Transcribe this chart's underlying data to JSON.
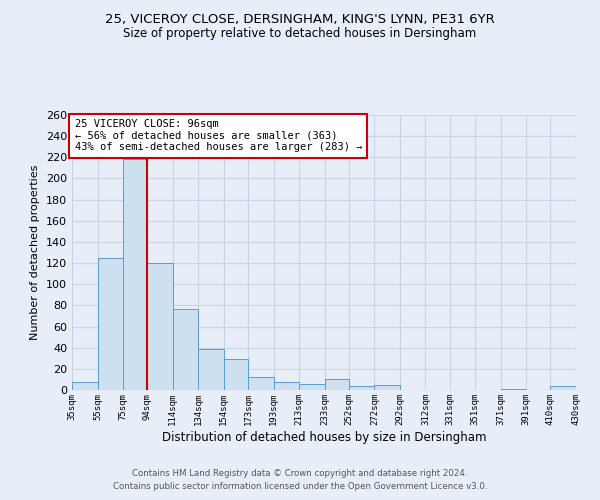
{
  "title1": "25, VICEROY CLOSE, DERSINGHAM, KING'S LYNN, PE31 6YR",
  "title2": "Size of property relative to detached houses in Dersingham",
  "xlabel": "Distribution of detached houses by size in Dersingham",
  "ylabel": "Number of detached properties",
  "property_label": "25 VICEROY CLOSE: 96sqm",
  "annotation_line1": "← 56% of detached houses are smaller (363)",
  "annotation_line2": "43% of semi-detached houses are larger (283) →",
  "bar_color": "#cce0f0",
  "bar_edge_color": "#5b9bd5",
  "vline_color": "#cc0000",
  "footer1": "Contains HM Land Registry data © Crown copyright and database right 2024.",
  "footer2": "Contains public sector information licensed under the Open Government Licence v3.0.",
  "bins": [
    35,
    55,
    75,
    94,
    114,
    134,
    154,
    173,
    193,
    213,
    233,
    252,
    272,
    292,
    312,
    331,
    351,
    371,
    391,
    410,
    430
  ],
  "bin_labels": [
    "35sqm",
    "55sqm",
    "75sqm",
    "94sqm",
    "114sqm",
    "134sqm",
    "154sqm",
    "173sqm",
    "193sqm",
    "213sqm",
    "233sqm",
    "252sqm",
    "272sqm",
    "292sqm",
    "312sqm",
    "331sqm",
    "351sqm",
    "371sqm",
    "391sqm",
    "410sqm",
    "430sqm"
  ],
  "counts": [
    8,
    125,
    218,
    120,
    77,
    39,
    29,
    12,
    8,
    6,
    10,
    4,
    5,
    0,
    0,
    0,
    0,
    1,
    0,
    4
  ],
  "ylim": [
    0,
    260
  ],
  "yticks": [
    0,
    20,
    40,
    60,
    80,
    100,
    120,
    140,
    160,
    180,
    200,
    220,
    240,
    260
  ],
  "grid_color": "#c8d4e8",
  "bg_color": "#e8eef8"
}
